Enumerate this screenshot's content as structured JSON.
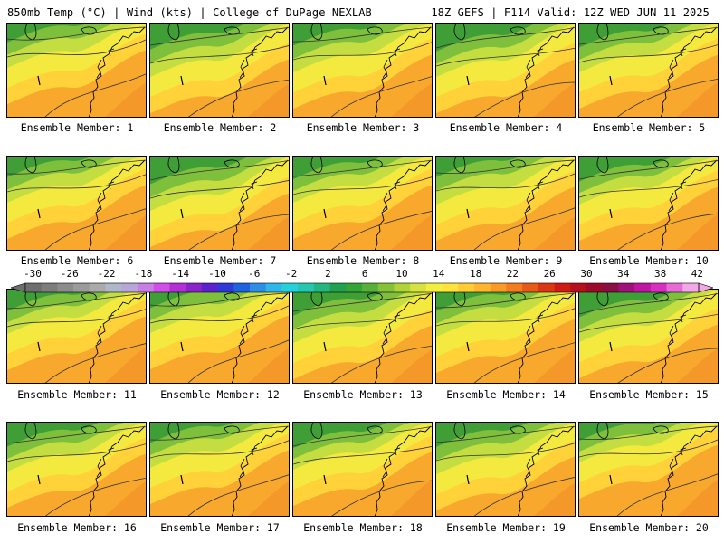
{
  "header": {
    "left": "850mb Temp (°C) | Wind (kts) | College of DuPage NEXLAB",
    "right": "18Z GEFS | F114 Valid: 12Z WED JUN 11 2025"
  },
  "caption_prefix": "Ensemble Member:",
  "members": [
    {
      "id": 1,
      "caption": "Ensemble Member: 1",
      "warmth": 0.45
    },
    {
      "id": 2,
      "caption": "Ensemble Member: 2",
      "warmth": 0.35
    },
    {
      "id": 3,
      "caption": "Ensemble Member: 3",
      "warmth": 0.4
    },
    {
      "id": 4,
      "caption": "Ensemble Member: 4",
      "warmth": 0.45
    },
    {
      "id": 5,
      "caption": "Ensemble Member: 5",
      "warmth": 0.5
    },
    {
      "id": 6,
      "caption": "Ensemble Member: 6",
      "warmth": 0.45
    },
    {
      "id": 7,
      "caption": "Ensemble Member: 7",
      "warmth": 0.4
    },
    {
      "id": 8,
      "caption": "Ensemble Member: 8",
      "warmth": 0.55
    },
    {
      "id": 9,
      "caption": "Ensemble Member: 9",
      "warmth": 0.35
    },
    {
      "id": 10,
      "caption": "Ensemble Member: 10",
      "warmth": 0.6
    },
    {
      "id": 11,
      "caption": "Ensemble Member: 11",
      "warmth": 0.6
    },
    {
      "id": 12,
      "caption": "Ensemble Member: 12",
      "warmth": 0.5
    },
    {
      "id": 13,
      "caption": "Ensemble Member: 13",
      "warmth": 0.35
    },
    {
      "id": 14,
      "caption": "Ensemble Member: 14",
      "warmth": 0.45
    },
    {
      "id": 15,
      "caption": "Ensemble Member: 15",
      "warmth": 0.5
    },
    {
      "id": 16,
      "caption": "Ensemble Member: 16",
      "warmth": 0.5
    },
    {
      "id": 17,
      "caption": "Ensemble Member: 17",
      "warmth": 0.5
    },
    {
      "id": 18,
      "caption": "Ensemble Member: 18",
      "warmth": 0.65
    },
    {
      "id": 19,
      "caption": "Ensemble Member: 19",
      "warmth": 0.35
    },
    {
      "id": 20,
      "caption": "Ensemble Member: 20",
      "warmth": 0.65
    }
  ],
  "colorbar": {
    "tick_labels": [
      "-30",
      "-26",
      "-22",
      "-18",
      "-14",
      "-10",
      "-6",
      "-2",
      "2",
      "6",
      "10",
      "14",
      "18",
      "22",
      "26",
      "30",
      "34",
      "38",
      "42"
    ],
    "colors": [
      "#6e6e6e",
      "#7d7d7d",
      "#8c8c8c",
      "#9b9b9b",
      "#aaaaaa",
      "#b0b8c8",
      "#b7a6d9",
      "#c77fe6",
      "#d24ee8",
      "#b52fd7",
      "#8a23c9",
      "#5d20d0",
      "#2f39d9",
      "#1d62e0",
      "#2d8ee7",
      "#2fb6ea",
      "#25d2dc",
      "#24c8b0",
      "#23b67f",
      "#1fa14f",
      "#33a436",
      "#56b03a",
      "#86c238",
      "#aed43a",
      "#d6e23f",
      "#f2ef3f",
      "#ffe33a",
      "#ffcc33",
      "#ffb52c",
      "#f99a24",
      "#f27c1e",
      "#e85a18",
      "#dc3714",
      "#cf1b13",
      "#b80f1e",
      "#9c0c2a",
      "#8a0f45",
      "#a0127a",
      "#c014a2",
      "#d92ec2",
      "#e76bd6",
      "#f2a7e6"
    ]
  },
  "map_palette": {
    "dark_green": "#3f9e36",
    "green": "#7ebf3c",
    "yellow_green": "#c4de41",
    "yellow": "#f4ea3f",
    "light_orange": "#ffd23a",
    "orange": "#f8a82c",
    "dark_orange": "#f08a2a"
  }
}
